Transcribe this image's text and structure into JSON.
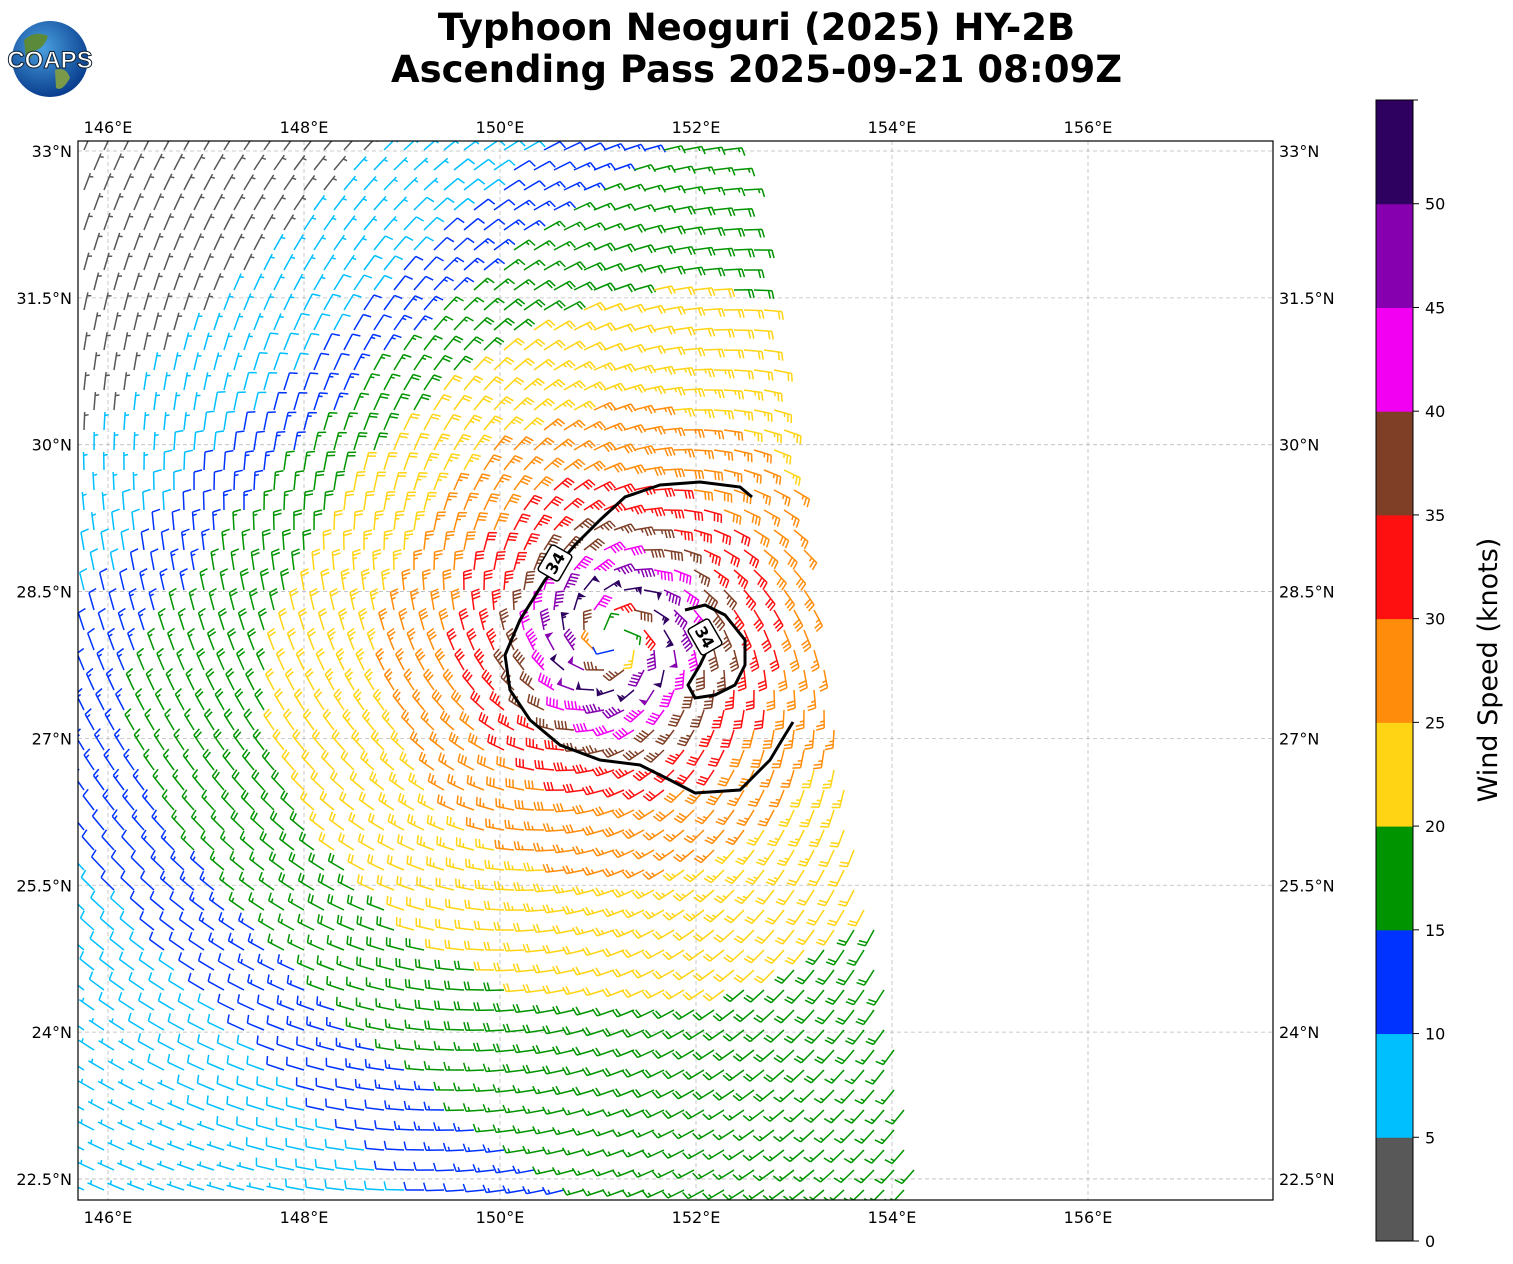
{
  "header": {
    "title_line1": "Typhoon Neoguri (2025) HY-2B",
    "title_line2": "Ascending Pass 2025-09-21 08:09Z",
    "logo_text": "COAPS"
  },
  "map": {
    "lon_labels": [
      "146°E",
      "148°E",
      "150°E",
      "152°E",
      "154°E",
      "156°E"
    ],
    "lon_values": [
      146,
      148,
      150,
      152,
      154,
      156
    ],
    "lat_labels": [
      "33°N",
      "31.5°N",
      "30°N",
      "28.5°N",
      "27°N",
      "25.5°N",
      "24°N",
      "22.5°N"
    ],
    "lat_values": [
      33,
      31.5,
      30,
      28.5,
      27,
      25.5,
      24,
      22.5
    ],
    "contour_labels": [
      "34",
      "34"
    ]
  },
  "colorbar": {
    "label": "Wind Speed (knots)",
    "ticks": [
      "0",
      "5",
      "10",
      "15",
      "20",
      "25",
      "30",
      "35",
      "40",
      "45",
      "50"
    ],
    "bounds": [
      0,
      5,
      10,
      15,
      20,
      25,
      30,
      35,
      40,
      45,
      50,
      55
    ],
    "colors": [
      "#585858",
      "#00bfff",
      "#0033ff",
      "#009400",
      "#ffd414",
      "#ff8c0a",
      "#ff1010",
      "#7f3f27",
      "#f200f2",
      "#8600b0",
      "#2e0060"
    ]
  }
}
